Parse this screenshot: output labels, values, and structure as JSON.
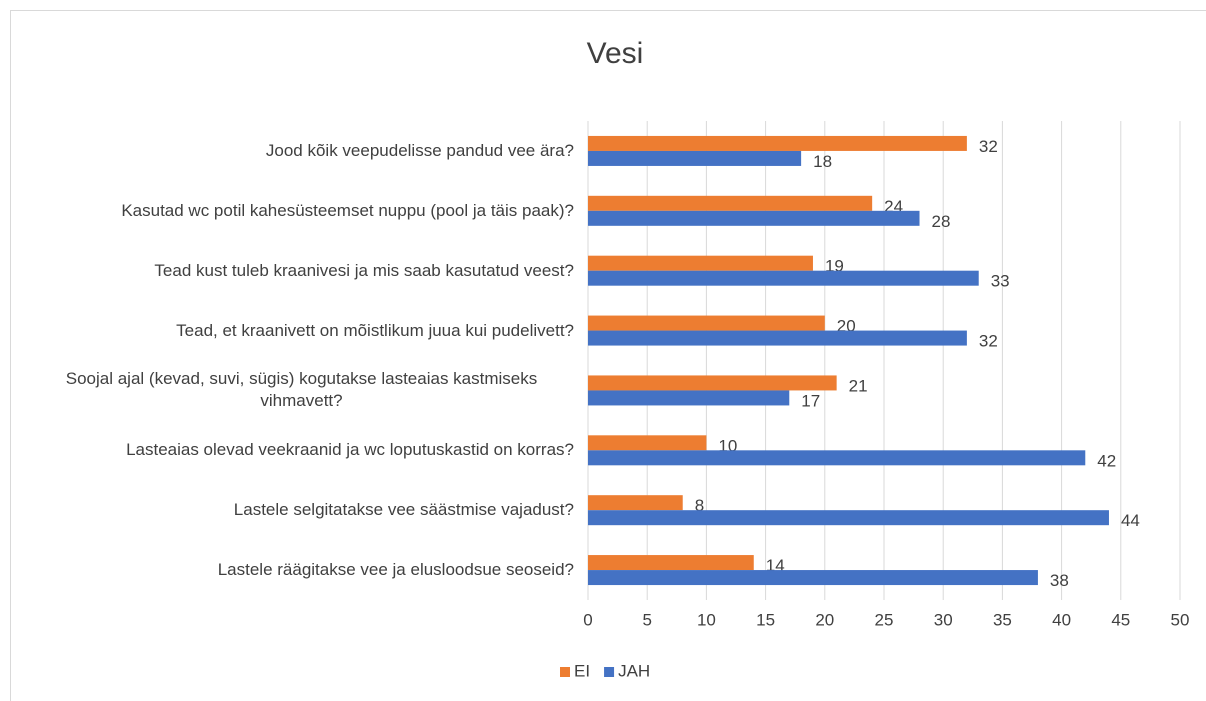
{
  "chart_data": {
    "type": "bar",
    "orientation": "horizontal",
    "title": "Vesi",
    "categories": [
      "Jood kõik veepudelisse pandud vee ära?",
      "Kasutad wc potil kahesüsteemset nuppu (pool ja täis paak)?",
      "Tead kust tuleb kraanivesi ja mis saab kasutatud veest?",
      "Tead, et kraanivett on mõistlikum juua kui pudelivett?",
      "Soojal ajal (kevad, suvi, sügis) kogutakse lasteaias kastmiseks vihmavett?",
      "Lasteaias olevad veekraanid ja wc loputuskastid on korras?",
      "Lastele selgitatakse vee säästmise vajadust?",
      "Lastele räägitakse vee ja elusloodsue seoseid?"
    ],
    "series": [
      {
        "name": "EI",
        "color": "#ed7d31",
        "values": [
          32,
          24,
          19,
          20,
          21,
          10,
          8,
          14
        ]
      },
      {
        "name": "JAH",
        "color": "#4472c4",
        "values": [
          18,
          28,
          33,
          32,
          17,
          42,
          44,
          38
        ]
      }
    ],
    "xlim": [
      0,
      50
    ],
    "xticks": [
      0,
      5,
      10,
      15,
      20,
      25,
      30,
      35,
      40,
      45,
      50
    ],
    "grid": true,
    "legend": "bottom"
  }
}
